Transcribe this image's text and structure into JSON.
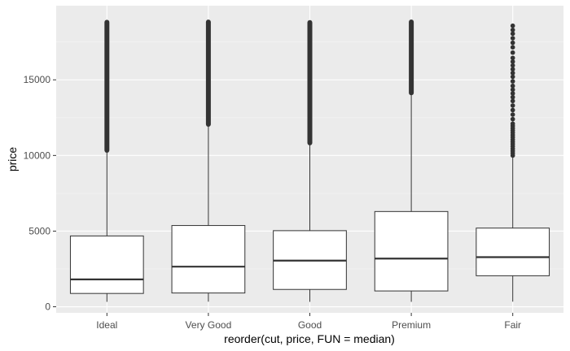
{
  "chart_data": {
    "type": "boxplot",
    "title": "",
    "xlabel": "reorder(cut, price, FUN = median)",
    "ylabel": "price",
    "categories": [
      "Ideal",
      "Very Good",
      "Good",
      "Premium",
      "Fair"
    ],
    "ylim": [
      -400,
      19900
    ],
    "yticks": [
      0,
      5000,
      10000,
      15000
    ],
    "grid": true,
    "boxes": [
      {
        "name": "Ideal",
        "whisker_low": 326,
        "q1": 880,
        "median": 1810,
        "q3": 4680,
        "whisker_high": 10330,
        "outlier_min": 10340,
        "outlier_max": 18806,
        "outliers_dense": true
      },
      {
        "name": "Very Good",
        "whisker_low": 336,
        "q1": 910,
        "median": 2650,
        "q3": 5370,
        "whisker_high": 12050,
        "outlier_min": 12060,
        "outlier_max": 18818,
        "outliers_dense": true
      },
      {
        "name": "Good",
        "whisker_low": 327,
        "q1": 1145,
        "median": 3050,
        "q3": 5030,
        "whisker_high": 10820,
        "outlier_min": 10830,
        "outlier_max": 18788,
        "outliers_dense": true
      },
      {
        "name": "Premium",
        "whisker_low": 326,
        "q1": 1045,
        "median": 3185,
        "q3": 6295,
        "whisker_high": 14130,
        "outlier_min": 14140,
        "outlier_max": 18823,
        "outliers_dense": true
      },
      {
        "name": "Fair",
        "whisker_low": 337,
        "q1": 2050,
        "median": 3280,
        "q3": 5200,
        "whisker_high": 9950,
        "outliers": [
          10000,
          10150,
          10300,
          10450,
          10600,
          10750,
          10900,
          11050,
          11200,
          11350,
          11500,
          11650,
          11800,
          11950,
          12100,
          12400,
          12700,
          13000,
          13300,
          13600,
          13850,
          14100,
          14350,
          14600,
          14900,
          15200,
          15450,
          15700,
          15950,
          16200,
          16450,
          16800,
          17150,
          17450,
          17750,
          18050,
          18300,
          18574
        ]
      }
    ]
  }
}
